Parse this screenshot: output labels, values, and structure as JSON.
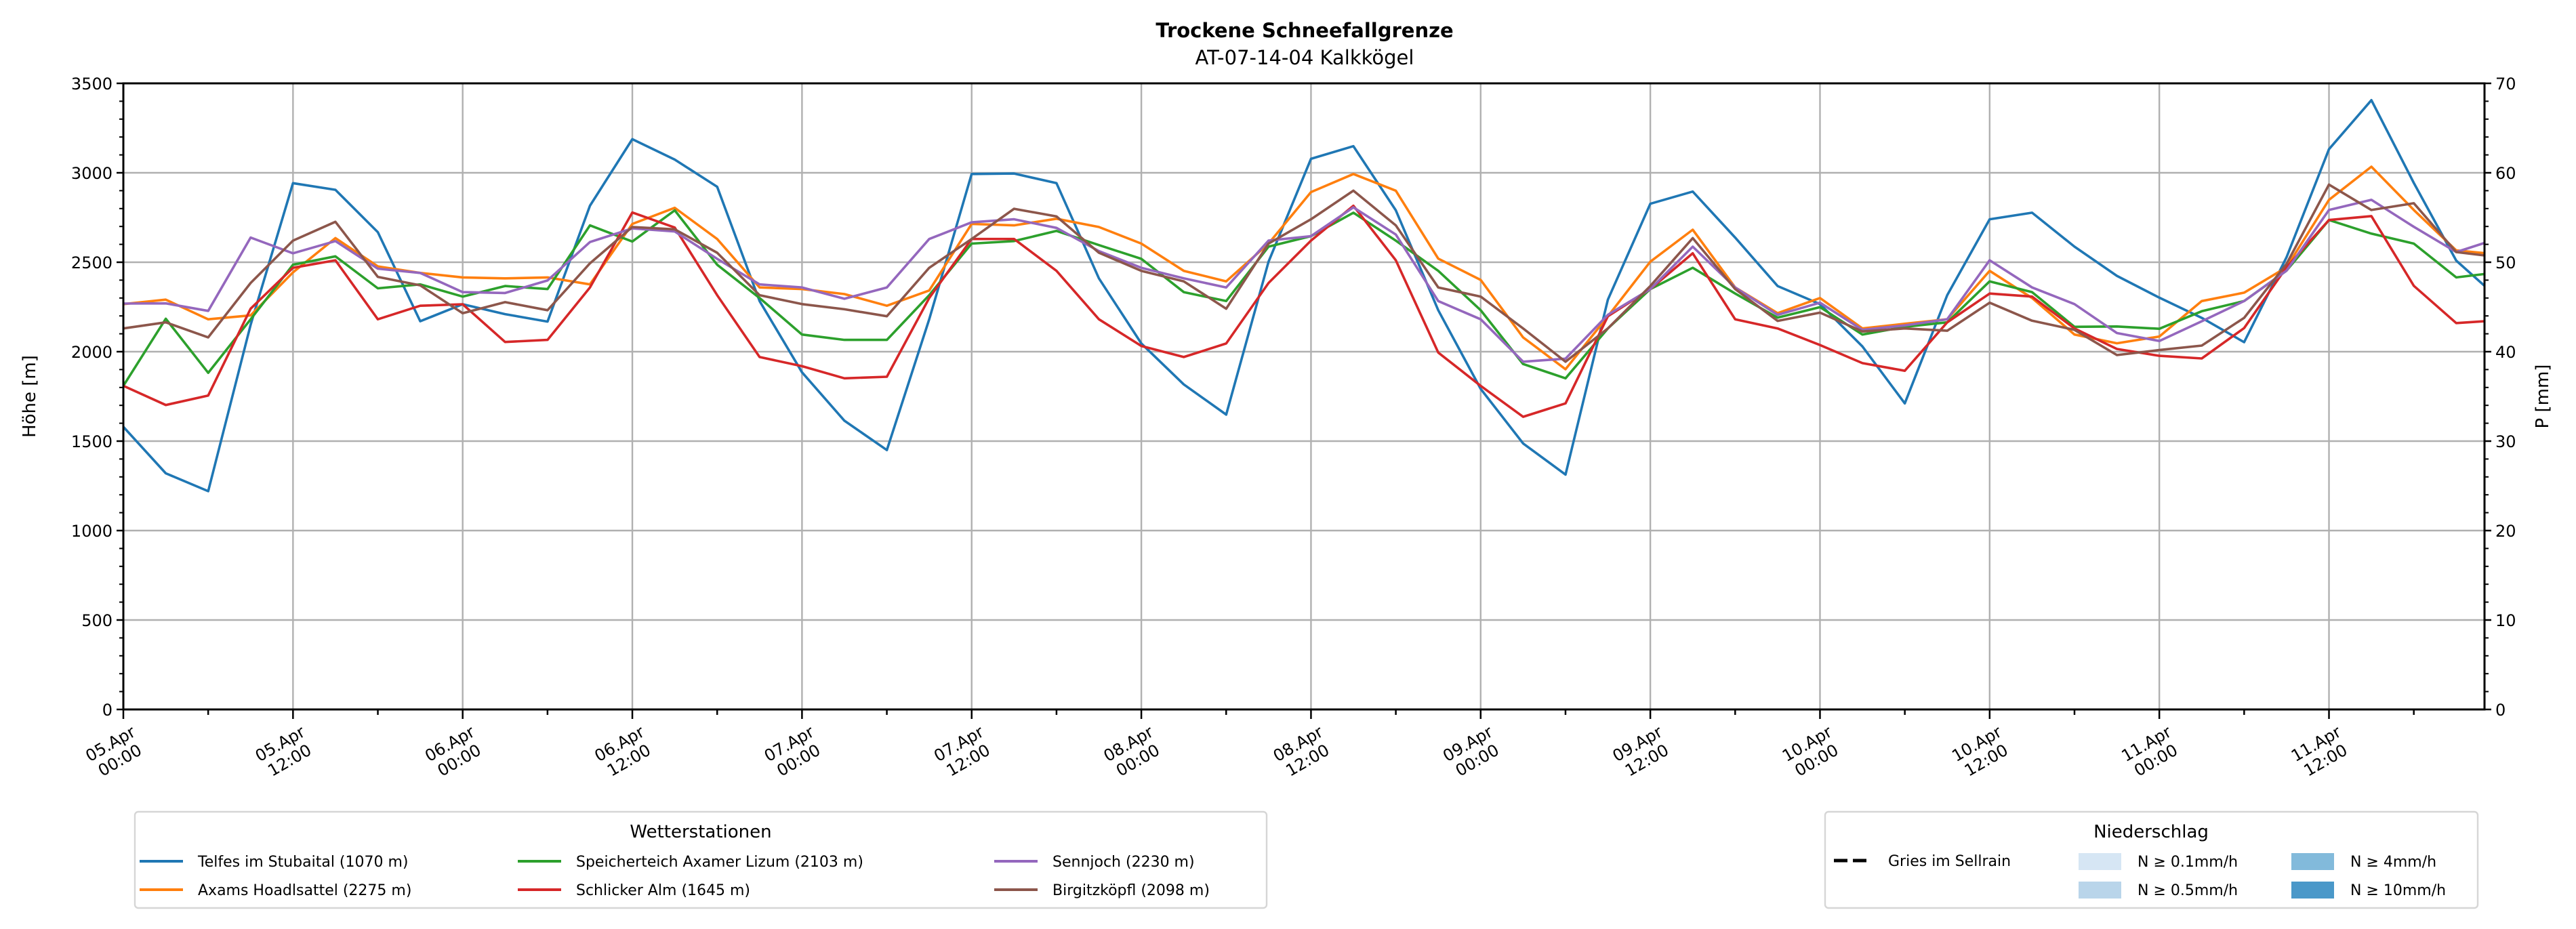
{
  "chart_data": {
    "type": "line",
    "title": "Trockene Schneefallgrenze",
    "subtitle": "AT-07-14-04 Kalkkögel",
    "ylabel": "Höhe [m]",
    "ylabel_right": "P [mm]",
    "ylim": [
      0,
      3500
    ],
    "ylim_right": [
      0,
      70
    ],
    "yticks": [
      0,
      500,
      1000,
      1500,
      2000,
      2500,
      3000,
      3500
    ],
    "yticks_right": [
      0,
      10,
      20,
      30,
      40,
      50,
      60,
      70
    ],
    "xlim_hours": [
      0,
      167
    ],
    "x_unit": "hours since 05.Apr 00:00",
    "xtick_hours": [
      0,
      12,
      24,
      36,
      48,
      60,
      72,
      84,
      96,
      108,
      120,
      132,
      144,
      156
    ],
    "xtick_labels": [
      [
        "05.Apr",
        "00:00"
      ],
      [
        "05.Apr",
        "12:00"
      ],
      [
        "06.Apr",
        "00:00"
      ],
      [
        "06.Apr",
        "12:00"
      ],
      [
        "07.Apr",
        "00:00"
      ],
      [
        "07.Apr",
        "12:00"
      ],
      [
        "08.Apr",
        "00:00"
      ],
      [
        "08.Apr",
        "12:00"
      ],
      [
        "09.Apr",
        "00:00"
      ],
      [
        "09.Apr",
        "12:00"
      ],
      [
        "10.Apr",
        "00:00"
      ],
      [
        "10.Apr",
        "12:00"
      ],
      [
        "11.Apr",
        "00:00"
      ],
      [
        "11.Apr",
        "12:00"
      ]
    ],
    "grid": true,
    "x": [
      0,
      3,
      6,
      9,
      12,
      15,
      18,
      21,
      24,
      27,
      30,
      33,
      36,
      39,
      42,
      45,
      48,
      51,
      54,
      57,
      60,
      63,
      66,
      69,
      72,
      75,
      78,
      81,
      84,
      87,
      90,
      93,
      96,
      99,
      102,
      105,
      108,
      111,
      114,
      117,
      120,
      123,
      126,
      129,
      132,
      135,
      138,
      141,
      144,
      147,
      150,
      153,
      156,
      159,
      162,
      165,
      167
    ],
    "series": [
      {
        "name": "Telfes im Stubaital (1070 m)",
        "color": "#1f77b4",
        "values": [
          1580,
          1320,
          1220,
          2150,
          2942,
          2905,
          2668,
          2170,
          2265,
          2210,
          2168,
          2816,
          3188,
          3074,
          2922,
          2283,
          1885,
          1614,
          1450,
          2181,
          2993,
          2996,
          2942,
          2410,
          2046,
          1817,
          1648,
          2503,
          3078,
          3149,
          2790,
          2232,
          1792,
          1487,
          1313,
          2291,
          2827,
          2895,
          2638,
          2367,
          2266,
          2029,
          1711,
          2316,
          2740,
          2777,
          2587,
          2424,
          2302,
          2189,
          2053,
          2528,
          3132,
          3406,
          2943,
          2509,
          2368
        ]
      },
      {
        "name": "Axams Hoadlsattel (2275 m)",
        "color": "#ff7f0e",
        "values": [
          2266,
          2291,
          2181,
          2203,
          2443,
          2635,
          2477,
          2440,
          2415,
          2410,
          2415,
          2376,
          2714,
          2804,
          2630,
          2359,
          2350,
          2322,
          2257,
          2342,
          2714,
          2706,
          2743,
          2697,
          2604,
          2452,
          2393,
          2604,
          2892,
          2993,
          2900,
          2520,
          2401,
          2080,
          1902,
          2198,
          2503,
          2682,
          2359,
          2215,
          2300,
          2130,
          2156,
          2181,
          2452,
          2300,
          2096,
          2047,
          2085,
          2283,
          2330,
          2472,
          2849,
          3034,
          2792,
          2566,
          2551
        ]
      },
      {
        "name": "Speicherteich Axamer Lizum (2103 m)",
        "color": "#2ca02c",
        "values": [
          1809,
          2184,
          1882,
          2181,
          2486,
          2533,
          2354,
          2376,
          2308,
          2367,
          2350,
          2706,
          2616,
          2790,
          2486,
          2300,
          2096,
          2066,
          2066,
          2316,
          2604,
          2618,
          2675,
          2596,
          2519,
          2333,
          2283,
          2587,
          2646,
          2777,
          2621,
          2452,
          2232,
          1931,
          1851,
          2130,
          2350,
          2469,
          2325,
          2190,
          2249,
          2096,
          2139,
          2164,
          2393,
          2333,
          2139,
          2141,
          2128,
          2226,
          2283,
          2453,
          2736,
          2660,
          2604,
          2415,
          2434
        ]
      },
      {
        "name": "Schlicker Alm (1645 m)",
        "color": "#d62728",
        "values": [
          1809,
          1702,
          1755,
          2240,
          2469,
          2511,
          2181,
          2257,
          2265,
          2054,
          2066,
          2359,
          2778,
          2694,
          2316,
          1970,
          1919,
          1851,
          1860,
          2300,
          2630,
          2630,
          2452,
          2181,
          2032,
          1970,
          2046,
          2384,
          2621,
          2816,
          2511,
          1995,
          1809,
          1636,
          1711,
          2198,
          2350,
          2550,
          2181,
          2130,
          2037,
          1936,
          1893,
          2164,
          2325,
          2308,
          2130,
          2015,
          1977,
          1962,
          2132,
          2472,
          2736,
          2758,
          2368,
          2160,
          2170
        ]
      },
      {
        "name": "Sennjoch (2230 m)",
        "color": "#9467bd",
        "values": [
          2269,
          2270,
          2228,
          2638,
          2550,
          2618,
          2464,
          2440,
          2333,
          2328,
          2398,
          2613,
          2689,
          2672,
          2519,
          2376,
          2359,
          2296,
          2359,
          2630,
          2723,
          2740,
          2692,
          2562,
          2469,
          2410,
          2359,
          2621,
          2646,
          2807,
          2655,
          2283,
          2181,
          1944,
          1961,
          2206,
          2350,
          2587,
          2359,
          2206,
          2274,
          2122,
          2147,
          2181,
          2511,
          2359,
          2266,
          2104,
          2060,
          2170,
          2283,
          2453,
          2792,
          2849,
          2698,
          2557,
          2608
        ]
      },
      {
        "name": "Birgitzköpfl (2098 m)",
        "color": "#8c564b",
        "values": [
          2130,
          2164,
          2080,
          2384,
          2621,
          2726,
          2418,
          2371,
          2215,
          2277,
          2232,
          2494,
          2697,
          2684,
          2553,
          2316,
          2266,
          2237,
          2198,
          2469,
          2630,
          2799,
          2756,
          2553,
          2452,
          2393,
          2240,
          2604,
          2740,
          2900,
          2706,
          2359,
          2308,
          2130,
          1944,
          2130,
          2367,
          2635,
          2350,
          2172,
          2218,
          2113,
          2130,
          2117,
          2274,
          2173,
          2122,
          1981,
          2009,
          2034,
          2189,
          2491,
          2934,
          2792,
          2830,
          2557,
          2538
        ]
      }
    ],
    "legend_stations": {
      "title": "Wetterstationen",
      "placement": "bottom-left"
    },
    "legend_precip": {
      "title": "Niederschlag",
      "placement": "bottom-right",
      "line_label": "Gries im Sellrain",
      "patches": [
        {
          "label": "N ≥ 0.1mm/h",
          "color": "#d6e6f4"
        },
        {
          "label": "N ≥ 0.5mm/h",
          "color": "#b9d5ea"
        },
        {
          "label": "N ≥ 4mm/h",
          "color": "#82badb"
        },
        {
          "label": "N ≥ 10mm/h",
          "color": "#4a98c9"
        }
      ]
    }
  }
}
